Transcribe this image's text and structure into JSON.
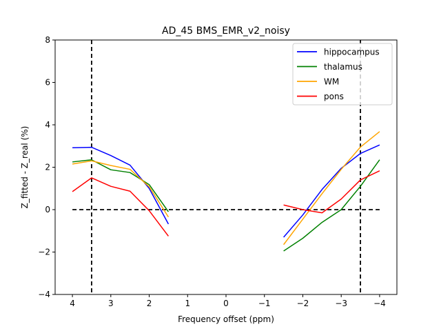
{
  "chart_data": {
    "type": "line",
    "title": "AD_45 BMS_EMR_v2_noisy",
    "xlabel": "Frequency offset (ppm)",
    "ylabel": "Z_fitted - Z_real (%)",
    "xlim": [
      4.45,
      -4.45
    ],
    "ylim": [
      -4,
      8
    ],
    "x_ticks": [
      4,
      3,
      2,
      1,
      0,
      -1,
      -2,
      -3,
      -4
    ],
    "x_tick_labels": [
      "4",
      "3",
      "2",
      "1",
      "0",
      "−1",
      "−2",
      "−3",
      "−4"
    ],
    "y_ticks": [
      -4,
      -2,
      0,
      2,
      4,
      6,
      8
    ],
    "y_tick_labels": [
      "−4",
      "−2",
      "0",
      "2",
      "4",
      "6",
      "8"
    ],
    "grid": false,
    "legend_position": "top-right",
    "reference_lines": [
      {
        "orientation": "vertical",
        "value": 3.5,
        "style": "dashed",
        "color": "#000000"
      },
      {
        "orientation": "vertical",
        "value": -3.5,
        "style": "dashed",
        "color": "#000000"
      },
      {
        "orientation": "horizontal",
        "value": 0,
        "from": 4,
        "to": -4,
        "style": "dashed",
        "color": "#000000"
      }
    ],
    "series": [
      {
        "name": "hippocampus",
        "color": "#0000ff",
        "segments": [
          {
            "x": [
              4,
              3.5,
              3,
              2.5,
              2,
              1.5
            ],
            "y": [
              2.92,
              2.94,
              2.55,
              2.1,
              1.0,
              -0.68
            ]
          },
          {
            "x": [
              -1.5,
              -2,
              -2.5,
              -3,
              -3.5,
              -4
            ],
            "y": [
              -1.3,
              -0.25,
              0.95,
              1.95,
              2.65,
              3.05
            ]
          }
        ]
      },
      {
        "name": "thalamus",
        "color": "#008000",
        "segments": [
          {
            "x": [
              4,
              3.5,
              3,
              2.5,
              2,
              1.5
            ],
            "y": [
              2.25,
              2.35,
              1.88,
              1.75,
              1.18,
              -0.1
            ]
          },
          {
            "x": [
              -1.5,
              -2,
              -2.5,
              -3,
              -3.5,
              -4
            ],
            "y": [
              -1.95,
              -1.35,
              -0.6,
              0.0,
              1.1,
              2.35
            ]
          }
        ]
      },
      {
        "name": "WM",
        "color": "#ffa500",
        "segments": [
          {
            "x": [
              4,
              3.5,
              3,
              2.5,
              2,
              1.5
            ],
            "y": [
              2.15,
              2.3,
              2.08,
              1.9,
              1.08,
              -0.35
            ]
          },
          {
            "x": [
              -1.5,
              -2,
              -2.5,
              -3,
              -3.5,
              -4
            ],
            "y": [
              -1.65,
              -0.45,
              0.75,
              1.9,
              2.95,
              3.68
            ]
          }
        ]
      },
      {
        "name": "pons",
        "color": "#ff0000",
        "segments": [
          {
            "x": [
              4,
              3.5,
              3,
              2.5,
              2,
              1.5
            ],
            "y": [
              0.85,
              1.5,
              1.1,
              0.87,
              -0.05,
              -1.25
            ]
          },
          {
            "x": [
              -1.5,
              -2,
              -2.5,
              -3,
              -3.5,
              -4
            ],
            "y": [
              0.22,
              0.0,
              -0.15,
              0.5,
              1.4,
              1.83
            ]
          }
        ]
      }
    ]
  }
}
